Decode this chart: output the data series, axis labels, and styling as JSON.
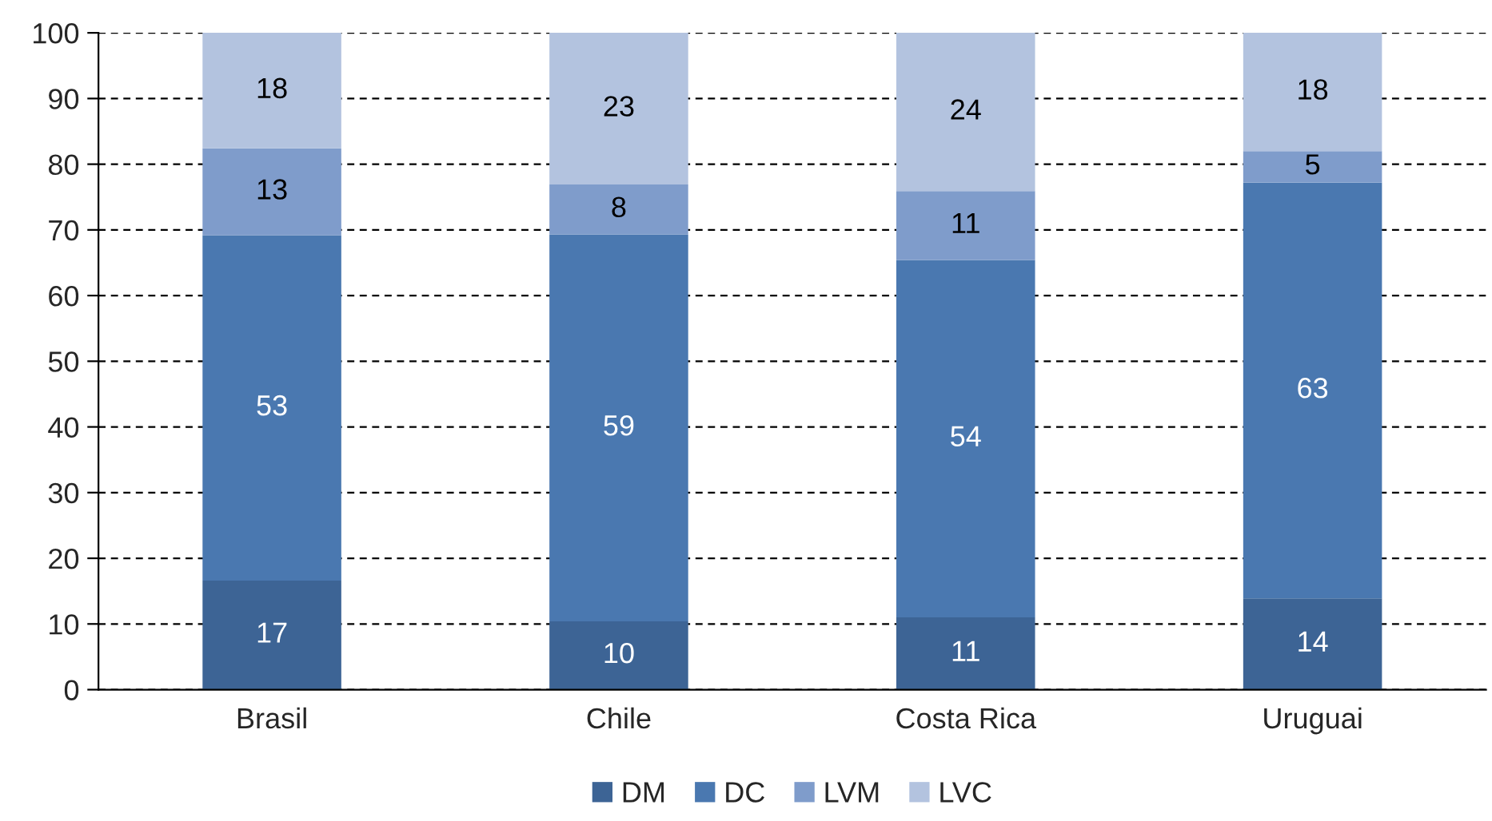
{
  "chart_data": {
    "type": "bar",
    "stacked": true,
    "categories": [
      "Brasil",
      "Chile",
      "Costa Rica",
      "Uruguai"
    ],
    "series": [
      {
        "name": "DM",
        "color": "#3d6495",
        "values": [
          16.6,
          10.4,
          11.0,
          13.9
        ],
        "value_labels": [
          "17",
          "10",
          "11",
          "14"
        ]
      },
      {
        "name": "DC",
        "color": "#4a78b0",
        "values": [
          52.6,
          58.9,
          54.4,
          63.3
        ],
        "value_labels": [
          "53",
          "59",
          "54",
          "63"
        ]
      },
      {
        "name": "LVM",
        "color": "#7f9ccb",
        "values": [
          13.2,
          7.6,
          10.5,
          4.8
        ],
        "value_labels": [
          "13",
          "8",
          "11",
          "5"
        ]
      },
      {
        "name": "LVC",
        "color": "#b3c3df",
        "values": [
          17.6,
          23.1,
          24.1,
          18.0
        ],
        "value_labels": [
          "18",
          "23",
          "24",
          "18"
        ]
      }
    ],
    "ylim": [
      0,
      100
    ],
    "yticks": [
      0,
      10,
      20,
      30,
      40,
      50,
      60,
      70,
      80,
      90,
      100
    ],
    "grid": "y",
    "legend": "bottom"
  }
}
